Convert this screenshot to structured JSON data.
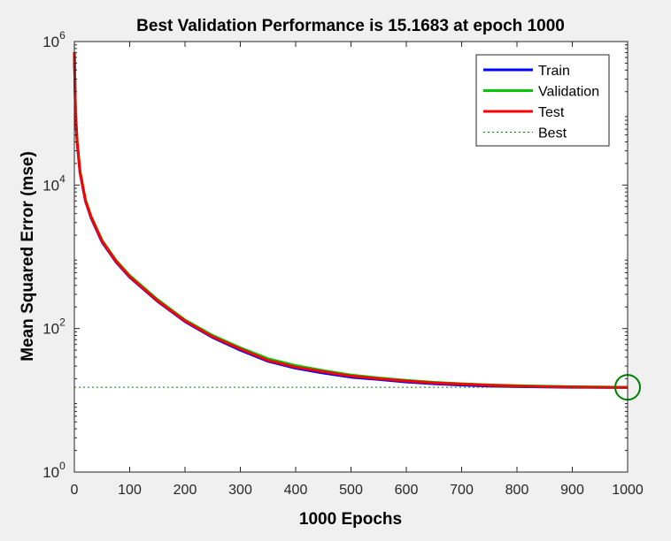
{
  "figure": {
    "background": "#f0f0f0",
    "axes_background": "#ffffff"
  },
  "chart_data": {
    "type": "line",
    "title": "Best Validation Performance is 15.1683 at epoch 1000",
    "xlabel": "1000 Epochs",
    "ylabel": "Mean Squared Error  (mse)",
    "xlim": [
      0,
      1000
    ],
    "ylim": [
      1,
      1000000
    ],
    "yscale": "log",
    "grid": false,
    "legend_position": "top-right",
    "x_ticks": [
      0,
      100,
      200,
      300,
      400,
      500,
      600,
      700,
      800,
      900,
      1000
    ],
    "y_ticks": [
      {
        "value": 1,
        "base": "10",
        "exp": "0"
      },
      {
        "value": 100,
        "base": "10",
        "exp": "2"
      },
      {
        "value": 10000,
        "base": "10",
        "exp": "4"
      },
      {
        "value": 1000000,
        "base": "10",
        "exp": "6"
      }
    ],
    "series": [
      {
        "name": "Train",
        "color": "#0000ff",
        "style": "solid",
        "x": [
          0,
          2,
          5,
          10,
          20,
          30,
          50,
          75,
          100,
          150,
          200,
          250,
          300,
          350,
          400,
          450,
          500,
          550,
          600,
          650,
          700,
          750,
          800,
          850,
          900,
          950,
          1000
        ],
        "y": [
          700000,
          100000,
          40000,
          15000,
          6000,
          3500,
          1600,
          850,
          520,
          240,
          125,
          75,
          50,
          35,
          28,
          24,
          21,
          19.5,
          18,
          17,
          16.3,
          15.8,
          15.5,
          15.3,
          15.2,
          15.1,
          15.05
        ]
      },
      {
        "name": "Validation",
        "color": "#00c800",
        "style": "solid",
        "x": [
          0,
          2,
          5,
          10,
          20,
          30,
          50,
          75,
          100,
          150,
          200,
          250,
          300,
          350,
          400,
          450,
          500,
          550,
          600,
          650,
          700,
          750,
          800,
          850,
          900,
          950,
          1000
        ],
        "y": [
          720000,
          105000,
          42000,
          16000,
          6300,
          3700,
          1700,
          900,
          550,
          255,
          132,
          80,
          54,
          38,
          30.5,
          26,
          22.5,
          20.5,
          19,
          17.8,
          17,
          16.4,
          16,
          15.7,
          15.45,
          15.3,
          15.1683
        ]
      },
      {
        "name": "Test",
        "color": "#ff0000",
        "style": "solid",
        "x": [
          0,
          2,
          5,
          10,
          20,
          30,
          50,
          75,
          100,
          150,
          200,
          250,
          300,
          350,
          400,
          450,
          500,
          550,
          600,
          650,
          700,
          750,
          800,
          850,
          900,
          950,
          1000
        ],
        "y": [
          710000,
          102000,
          41000,
          15500,
          6100,
          3600,
          1650,
          870,
          530,
          245,
          128,
          77,
          52,
          36,
          29,
          25,
          21.8,
          20,
          18.6,
          17.5,
          16.8,
          16.2,
          15.8,
          15.5,
          15.3,
          15.2,
          15.1
        ]
      },
      {
        "name": "Best",
        "color": "#008000",
        "style": "dotted"
      }
    ],
    "best": {
      "epoch": 1000,
      "value": 15.1683
    }
  }
}
